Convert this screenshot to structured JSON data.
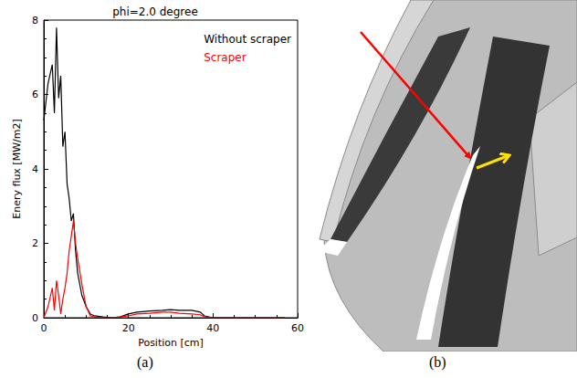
{
  "chart_data": {
    "type": "line",
    "title": "phi=2.0 degree",
    "x_label": "Position [cm]",
    "y_label": "Enery flux [MW/m2]",
    "x": [
      0,
      1,
      2,
      2.5,
      3,
      3.5,
      4,
      4.5,
      5,
      5.5,
      6,
      6.5,
      7,
      7.5,
      8,
      9,
      10,
      11,
      12,
      14,
      16,
      18,
      20,
      22,
      25,
      28,
      30,
      32,
      35,
      37,
      38,
      40,
      45,
      50,
      55,
      57
    ],
    "series": [
      {
        "name": "Without scraper",
        "color": "#000000",
        "values": [
          5.3,
          6.3,
          6.8,
          5.5,
          7.8,
          5.9,
          6.5,
          4.6,
          5.0,
          3.6,
          3.2,
          2.6,
          2.8,
          1.8,
          1.2,
          0.6,
          0.3,
          0.1,
          0.05,
          0.02,
          0,
          0.02,
          0.1,
          0.15,
          0.18,
          0.2,
          0.22,
          0.2,
          0.2,
          0.15,
          0.05,
          0,
          0,
          0,
          0,
          0
        ]
      },
      {
        "name": "Scraper",
        "color": "#ff0000",
        "values": [
          0,
          0.3,
          0.8,
          0.2,
          1.0,
          0.6,
          0.1,
          0.5,
          0.8,
          1.2,
          1.8,
          2.2,
          2.6,
          2.0,
          1.6,
          0.9,
          0.3,
          0.05,
          0.02,
          0,
          0,
          0.02,
          0.05,
          0.1,
          0.12,
          0.15,
          0.15,
          0.12,
          0.1,
          0.08,
          0.02,
          0,
          0,
          0,
          0,
          0
        ]
      }
    ],
    "xlim": [
      0,
      60
    ],
    "xticks": [
      0,
      20,
      40,
      60
    ],
    "ylim": [
      0,
      8
    ],
    "yticks": [
      0,
      2,
      4,
      6,
      8
    ],
    "grid": false,
    "legend": "upper right"
  },
  "panel_labels": [
    "(a)",
    "(b)"
  ]
}
